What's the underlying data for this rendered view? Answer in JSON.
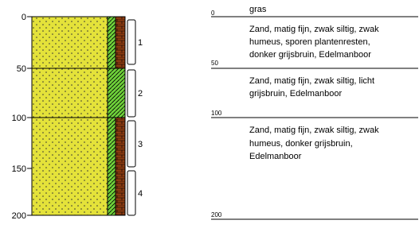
{
  "depth_axis": {
    "ticks": [
      "0",
      "50",
      "100",
      "150",
      "200"
    ]
  },
  "samples": [
    "1",
    "2",
    "3",
    "4"
  ],
  "description_column": {
    "depths": [
      "0",
      "50",
      "100",
      "200"
    ],
    "layers": [
      {
        "lines": [
          "gras"
        ]
      },
      {
        "lines": [
          "Zand, matig fijn, zwak siltig, zwak",
          "humeus, sporen plantenresten,",
          "donker grijsbruin, Edelmanboor"
        ]
      },
      {
        "lines": [
          "Zand, matig fijn, zwak siltig, licht",
          "grijsbruin,  Edelmanboor"
        ]
      },
      {
        "lines": [
          "Zand, matig fijn, zwak siltig, zwak",
          "humeus, donker grijsbruin,",
          "Edelmanboor"
        ]
      }
    ]
  }
}
